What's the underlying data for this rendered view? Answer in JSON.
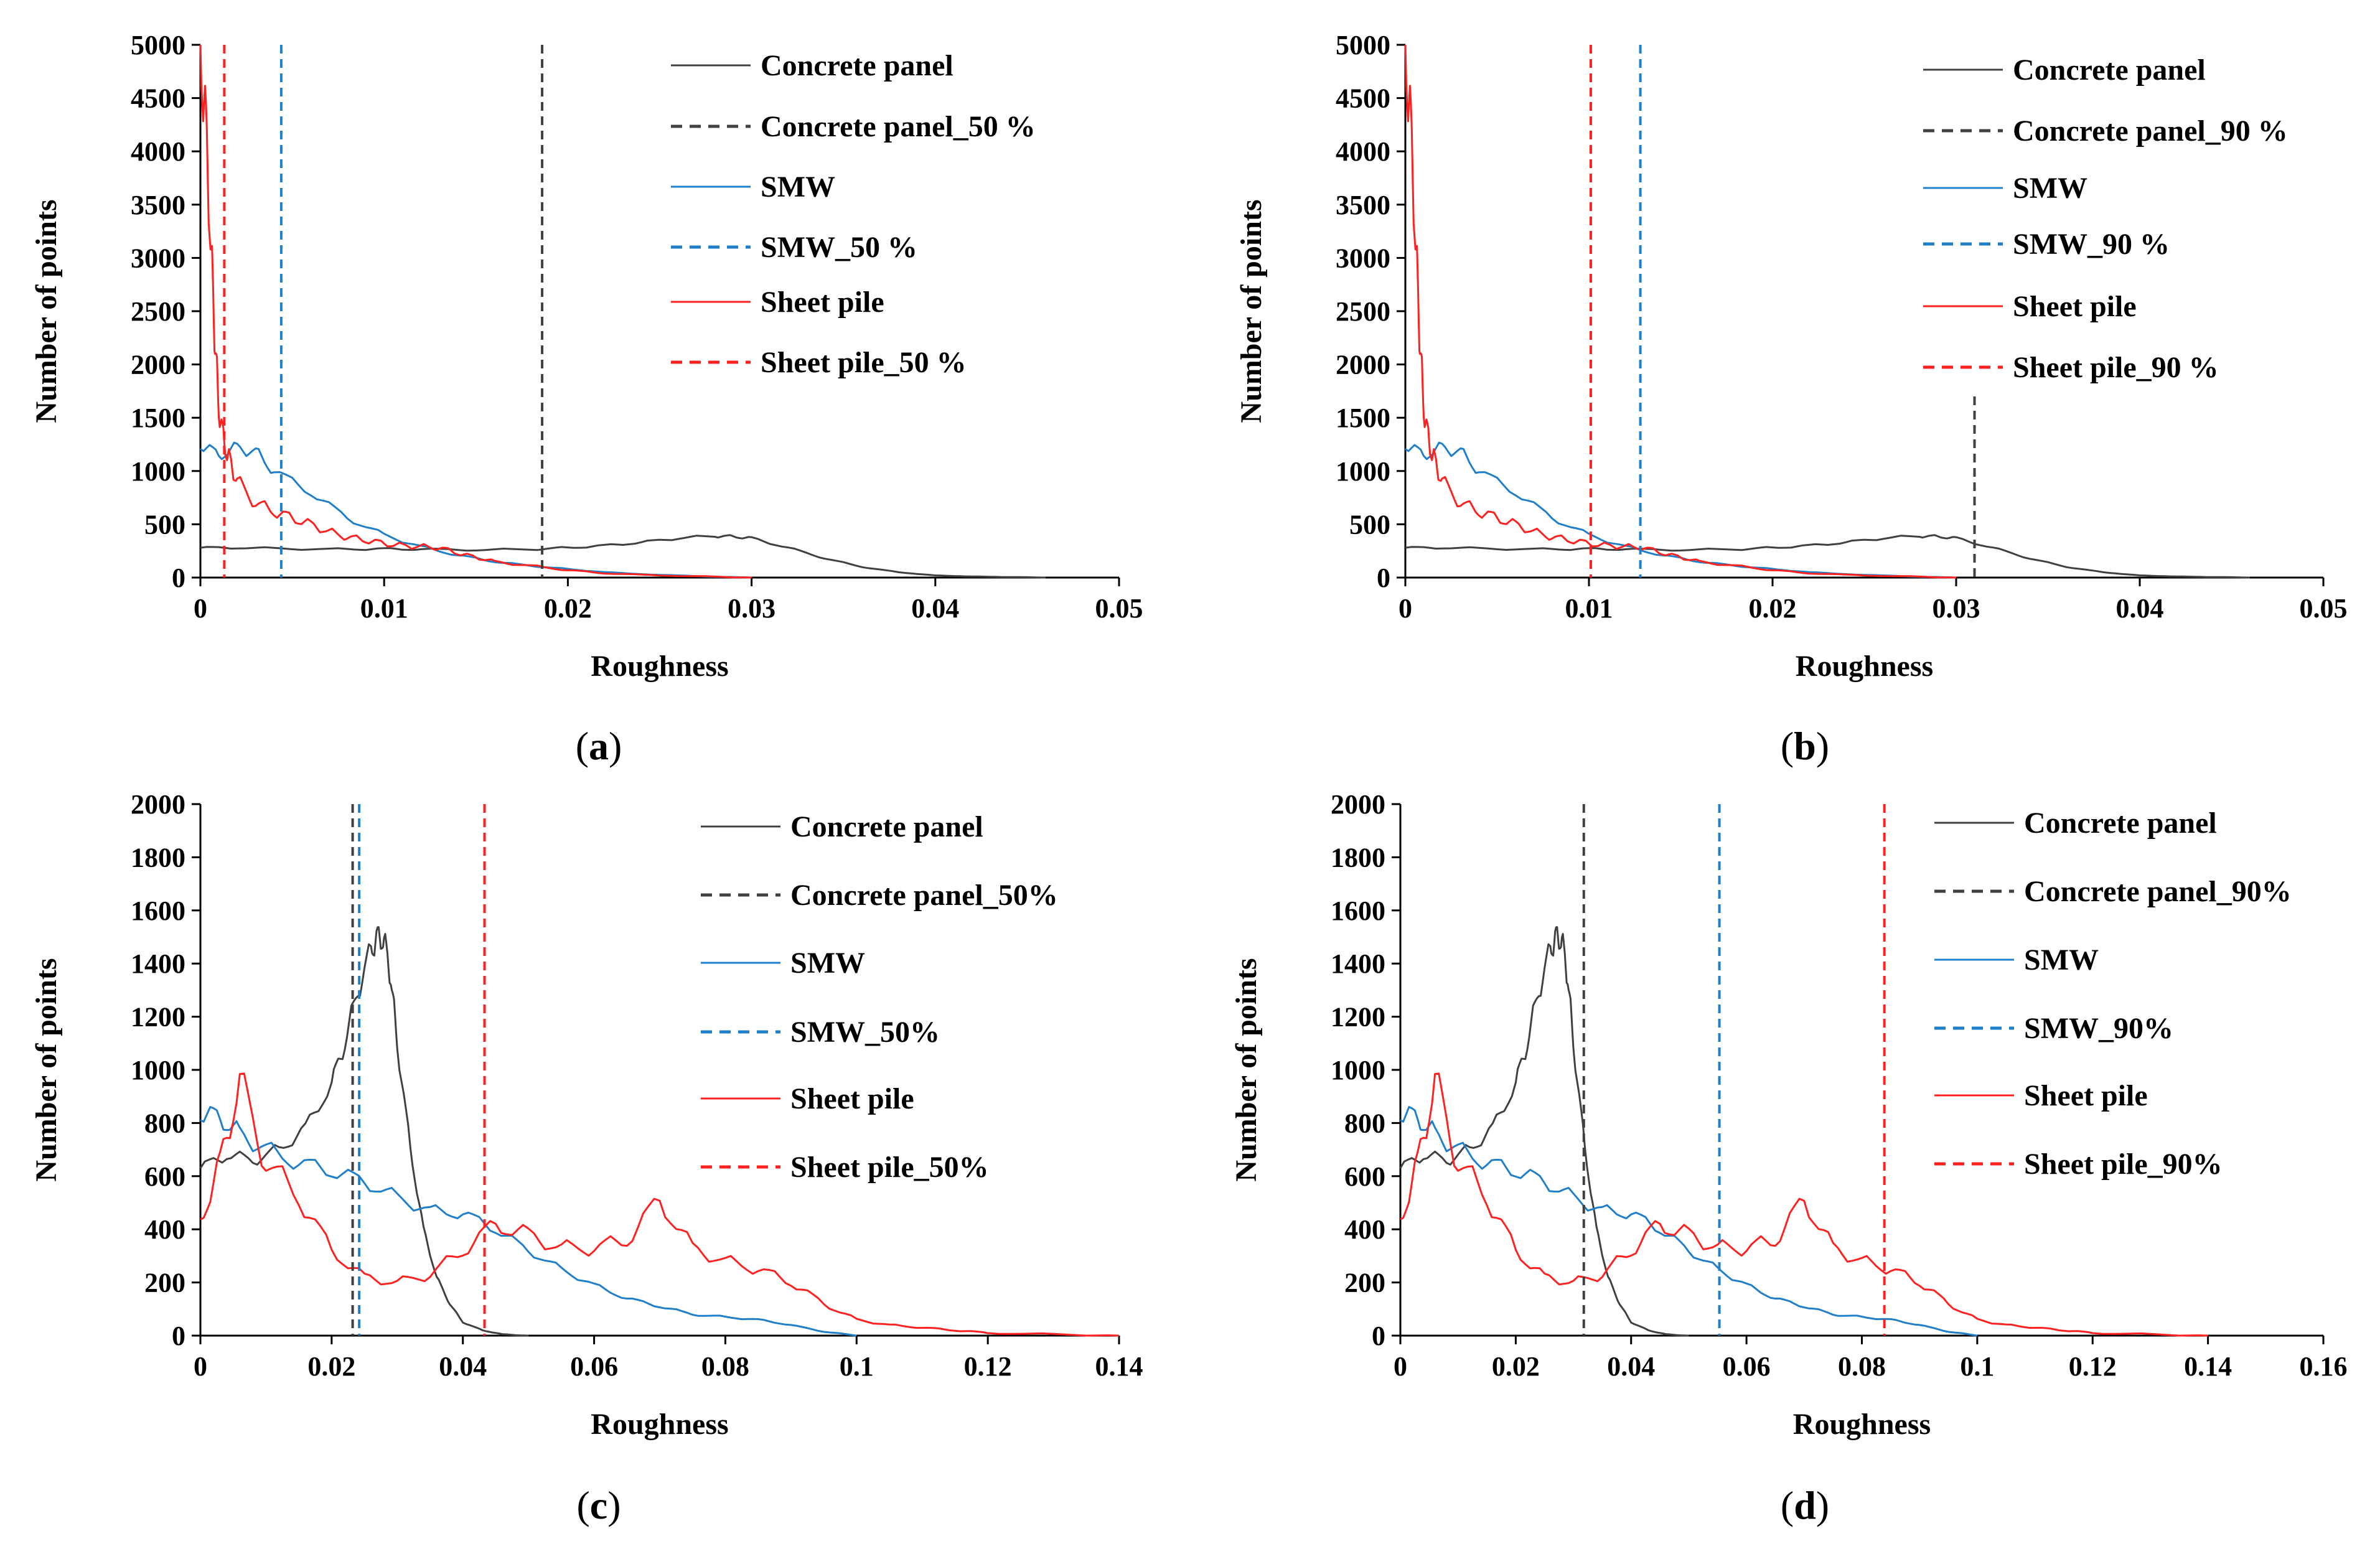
{
  "colors": {
    "concrete": "#404040",
    "smw": "#1f7fc8",
    "sheet": "#ff2020",
    "axis": "#000000"
  },
  "chart_data": [
    {
      "type": "line",
      "panel_label": "a",
      "xlabel": "Roughness",
      "ylabel": "Number of points",
      "xlim": [
        0,
        0.05
      ],
      "ylim": [
        0,
        5000
      ],
      "xticks": [
        "0",
        "0.01",
        "0.02",
        "0.03",
        "0.04",
        "0.05"
      ],
      "xtick_values": [
        0,
        0.01,
        0.02,
        0.03,
        0.04,
        0.05
      ],
      "yticks": [
        "0",
        "500",
        "1000",
        "1500",
        "2000",
        "2500",
        "3000",
        "3500",
        "4000",
        "4500",
        "5000"
      ],
      "ytick_values": [
        0,
        500,
        1000,
        1500,
        2000,
        2500,
        3000,
        3500,
        4000,
        4500,
        5000
      ],
      "legend": [
        "Concrete panel",
        "Concrete panel_50 %",
        "SMW",
        "SMW_50 %",
        "Sheet pile",
        "Sheet pile_50 %"
      ],
      "series": [
        {
          "name": "Concrete panel",
          "key": "concrete",
          "x": [
            0,
            0.002,
            0.005,
            0.008,
            0.01,
            0.012,
            0.015,
            0.018,
            0.02,
            0.022,
            0.024,
            0.026,
            0.028,
            0.029,
            0.03,
            0.032,
            0.034,
            0.036,
            0.038,
            0.04,
            0.042,
            0.044,
            0.046
          ],
          "y": [
            280,
            280,
            270,
            265,
            270,
            265,
            260,
            265,
            280,
            300,
            330,
            370,
            390,
            385,
            370,
            280,
            180,
            100,
            50,
            20,
            10,
            5,
            0
          ]
        },
        {
          "name": "SMW",
          "key": "smw",
          "x": [
            0,
            0.001,
            0.002,
            0.003,
            0.004,
            0.006,
            0.008,
            0.01,
            0.012,
            0.014,
            0.016,
            0.018,
            0.02,
            0.022,
            0.025,
            0.028,
            0.03
          ],
          "y": [
            1250,
            1150,
            1220,
            1180,
            1000,
            800,
            560,
            400,
            290,
            210,
            150,
            110,
            80,
            50,
            25,
            8,
            0
          ]
        },
        {
          "name": "Sheet pile",
          "key": "sheet",
          "x": [
            0,
            0.0003,
            0.0006,
            0.0008,
            0.001,
            0.0013,
            0.0016,
            0.002,
            0.003,
            0.004,
            0.005,
            0.006,
            0.007,
            0.008,
            0.009,
            0.01,
            0.011,
            0.012,
            0.013,
            0.014,
            0.015,
            0.016,
            0.018,
            0.02,
            0.022,
            0.025,
            0.028,
            0.03
          ],
          "y": [
            5000,
            4200,
            3000,
            2200,
            1600,
            1250,
            1100,
            900,
            700,
            620,
            560,
            500,
            430,
            380,
            350,
            320,
            300,
            290,
            280,
            230,
            190,
            150,
            110,
            70,
            40,
            20,
            8,
            0
          ]
        }
      ],
      "vlines": [
        {
          "name": "Concrete panel_50 %",
          "key": "concrete",
          "x": 0.0186,
          "ymax": 5000
        },
        {
          "name": "SMW_50 %",
          "key": "smw",
          "x": 0.0044,
          "ymax": 5000
        },
        {
          "name": "Sheet pile_50 %",
          "key": "sheet",
          "x": 0.0013,
          "ymax": 5000
        }
      ]
    },
    {
      "type": "line",
      "panel_label": "b",
      "xlabel": "Roughness",
      "ylabel": "Number of points",
      "xlim": [
        0,
        0.05
      ],
      "ylim": [
        0,
        5000
      ],
      "xticks": [
        "0",
        "0.01",
        "0.02",
        "0.03",
        "0.04",
        "0.05"
      ],
      "xtick_values": [
        0,
        0.01,
        0.02,
        0.03,
        0.04,
        0.05
      ],
      "yticks": [
        "0",
        "500",
        "1000",
        "1500",
        "2000",
        "2500",
        "3000",
        "3500",
        "4000",
        "4500",
        "5000"
      ],
      "ytick_values": [
        0,
        500,
        1000,
        1500,
        2000,
        2500,
        3000,
        3500,
        4000,
        4500,
        5000
      ],
      "legend": [
        "Concrete panel",
        "Concrete panel_90 %",
        "SMW",
        "SMW_90 %",
        "Sheet pile",
        "Sheet pile_90 %"
      ],
      "series": [
        {
          "name": "Concrete panel",
          "key": "concrete",
          "x": [
            0,
            0.002,
            0.005,
            0.008,
            0.01,
            0.012,
            0.015,
            0.018,
            0.02,
            0.022,
            0.024,
            0.026,
            0.028,
            0.029,
            0.03,
            0.032,
            0.034,
            0.036,
            0.038,
            0.04,
            0.042,
            0.044,
            0.046
          ],
          "y": [
            280,
            280,
            270,
            265,
            270,
            265,
            260,
            265,
            280,
            300,
            330,
            370,
            390,
            385,
            370,
            280,
            180,
            100,
            50,
            20,
            10,
            5,
            0
          ]
        },
        {
          "name": "SMW",
          "key": "smw",
          "x": [
            0,
            0.001,
            0.002,
            0.003,
            0.004,
            0.006,
            0.008,
            0.01,
            0.012,
            0.014,
            0.016,
            0.018,
            0.02,
            0.022,
            0.025,
            0.028,
            0.03
          ],
          "y": [
            1250,
            1150,
            1220,
            1180,
            1000,
            800,
            560,
            400,
            290,
            210,
            150,
            110,
            80,
            50,
            25,
            8,
            0
          ]
        },
        {
          "name": "Sheet pile",
          "key": "sheet",
          "x": [
            0,
            0.0003,
            0.0006,
            0.0008,
            0.001,
            0.0013,
            0.0016,
            0.002,
            0.003,
            0.004,
            0.005,
            0.006,
            0.007,
            0.008,
            0.009,
            0.01,
            0.011,
            0.012,
            0.013,
            0.014,
            0.015,
            0.016,
            0.018,
            0.02,
            0.022,
            0.025,
            0.028,
            0.03
          ],
          "y": [
            5000,
            4200,
            3000,
            2200,
            1600,
            1250,
            1100,
            900,
            700,
            620,
            560,
            500,
            430,
            380,
            350,
            320,
            300,
            290,
            280,
            230,
            190,
            150,
            110,
            70,
            40,
            20,
            8,
            0
          ]
        }
      ],
      "vlines": [
        {
          "name": "Concrete panel_90 %",
          "key": "concrete",
          "x": 0.031,
          "ymax": 1700
        },
        {
          "name": "SMW_90 %",
          "key": "smw",
          "x": 0.0128,
          "ymax": 5000
        },
        {
          "name": "Sheet pile_90 %",
          "key": "sheet",
          "x": 0.0101,
          "ymax": 5000
        }
      ]
    },
    {
      "type": "line",
      "panel_label": "c",
      "xlabel": "Roughness",
      "ylabel": "Number of points",
      "xlim": [
        0,
        0.14
      ],
      "ylim": [
        0,
        2000
      ],
      "xticks": [
        "0",
        "0.02",
        "0.04",
        "0.06",
        "0.08",
        "0.1",
        "0.12",
        "0.14"
      ],
      "xtick_values": [
        0,
        0.02,
        0.04,
        0.06,
        0.08,
        0.1,
        0.12,
        0.14
      ],
      "yticks": [
        "0",
        "200",
        "400",
        "600",
        "800",
        "1000",
        "1200",
        "1400",
        "1600",
        "1800",
        "2000"
      ],
      "ytick_values": [
        0,
        200,
        400,
        600,
        800,
        1000,
        1200,
        1400,
        1600,
        1800,
        2000
      ],
      "legend": [
        "Concrete panel",
        "Concrete panel_50%",
        "SMW",
        "SMW_50%",
        "Sheet pile",
        "Sheet pile_50%"
      ],
      "series": [
        {
          "name": "Concrete panel",
          "key": "concrete",
          "x": [
            0,
            0.004,
            0.008,
            0.012,
            0.016,
            0.02,
            0.022,
            0.024,
            0.026,
            0.027,
            0.028,
            0.029,
            0.03,
            0.032,
            0.034,
            0.036,
            0.038,
            0.04,
            0.043,
            0.046,
            0.05
          ],
          "y": [
            630,
            680,
            660,
            700,
            780,
            950,
            1100,
            1300,
            1450,
            1500,
            1490,
            1350,
            1100,
            700,
            400,
            220,
            120,
            50,
            20,
            5,
            0
          ]
        },
        {
          "name": "SMW",
          "key": "smw",
          "x": [
            0,
            0.003,
            0.006,
            0.01,
            0.015,
            0.02,
            0.025,
            0.03,
            0.035,
            0.04,
            0.045,
            0.05,
            0.055,
            0.06,
            0.065,
            0.07,
            0.075,
            0.08,
            0.085,
            0.09,
            0.095,
            0.1
          ],
          "y": [
            840,
            820,
            760,
            700,
            650,
            620,
            580,
            520,
            470,
            460,
            400,
            320,
            250,
            190,
            140,
            110,
            80,
            70,
            60,
            40,
            15,
            0
          ]
        },
        {
          "name": "Sheet pile",
          "key": "sheet",
          "x": [
            0,
            0.003,
            0.006,
            0.01,
            0.015,
            0.02,
            0.025,
            0.03,
            0.035,
            0.04,
            0.045,
            0.05,
            0.055,
            0.06,
            0.065,
            0.07,
            0.075,
            0.08,
            0.085,
            0.09,
            0.095,
            0.1,
            0.105,
            0.11,
            0.115,
            0.12,
            0.13,
            0.14
          ],
          "y": [
            430,
            650,
            960,
            650,
            520,
            320,
            220,
            200,
            230,
            320,
            420,
            380,
            330,
            330,
            360,
            510,
            330,
            280,
            250,
            200,
            120,
            60,
            40,
            30,
            20,
            10,
            5,
            0
          ]
        }
      ],
      "vlines": [
        {
          "name": "Concrete panel_50%",
          "key": "concrete",
          "x": 0.0232,
          "ymax": 2000
        },
        {
          "name": "SMW_50%",
          "key": "smw",
          "x": 0.0242,
          "ymax": 2000
        },
        {
          "name": "Sheet pile_50%",
          "key": "sheet",
          "x": 0.0433,
          "ymax": 2000
        }
      ]
    },
    {
      "type": "line",
      "panel_label": "d",
      "xlabel": "Roughness",
      "ylabel": "Number of points",
      "xlim": [
        0,
        0.16
      ],
      "ylim": [
        0,
        2000
      ],
      "xticks": [
        "0",
        "0.02",
        "0.04",
        "0.06",
        "0.08",
        "0.1",
        "0.12",
        "0.14",
        "0.16"
      ],
      "xtick_values": [
        0,
        0.02,
        0.04,
        0.06,
        0.08,
        0.1,
        0.12,
        0.14,
        0.16
      ],
      "yticks": [
        "0",
        "200",
        "400",
        "600",
        "800",
        "1000",
        "1200",
        "1400",
        "1600",
        "1800",
        "2000"
      ],
      "ytick_values": [
        0,
        200,
        400,
        600,
        800,
        1000,
        1200,
        1400,
        1600,
        1800,
        2000
      ],
      "legend": [
        "Concrete panel",
        "Concrete panel_90%",
        "SMW",
        "SMW_90%",
        "Sheet pile",
        "Sheet pile_90%"
      ],
      "series": [
        {
          "name": "Concrete panel",
          "key": "concrete",
          "x": [
            0,
            0.004,
            0.008,
            0.012,
            0.016,
            0.02,
            0.022,
            0.024,
            0.026,
            0.027,
            0.028,
            0.029,
            0.03,
            0.032,
            0.034,
            0.036,
            0.038,
            0.04,
            0.043,
            0.046,
            0.05
          ],
          "y": [
            630,
            680,
            660,
            700,
            780,
            950,
            1100,
            1300,
            1450,
            1500,
            1490,
            1350,
            1100,
            700,
            400,
            220,
            120,
            50,
            20,
            5,
            0
          ]
        },
        {
          "name": "SMW",
          "key": "smw",
          "x": [
            0,
            0.003,
            0.006,
            0.01,
            0.015,
            0.02,
            0.025,
            0.03,
            0.035,
            0.04,
            0.045,
            0.05,
            0.055,
            0.06,
            0.065,
            0.07,
            0.075,
            0.08,
            0.085,
            0.09,
            0.095,
            0.1
          ],
          "y": [
            840,
            820,
            760,
            700,
            650,
            620,
            580,
            520,
            470,
            460,
            400,
            320,
            250,
            190,
            140,
            110,
            80,
            70,
            60,
            40,
            15,
            0
          ]
        },
        {
          "name": "Sheet pile",
          "key": "sheet",
          "x": [
            0,
            0.003,
            0.006,
            0.01,
            0.015,
            0.02,
            0.025,
            0.03,
            0.035,
            0.04,
            0.045,
            0.05,
            0.055,
            0.06,
            0.065,
            0.07,
            0.075,
            0.08,
            0.085,
            0.09,
            0.095,
            0.1,
            0.105,
            0.11,
            0.115,
            0.12,
            0.13,
            0.14
          ],
          "y": [
            430,
            650,
            960,
            650,
            520,
            320,
            220,
            200,
            230,
            320,
            420,
            380,
            330,
            330,
            360,
            510,
            330,
            280,
            250,
            200,
            120,
            60,
            40,
            30,
            20,
            10,
            5,
            0
          ]
        }
      ],
      "vlines": [
        {
          "name": "Concrete panel_90%",
          "key": "concrete",
          "x": 0.0318,
          "ymax": 2000
        },
        {
          "name": "SMW_90%",
          "key": "smw",
          "x": 0.0553,
          "ymax": 2000
        },
        {
          "name": "Sheet pile_90%",
          "key": "sheet",
          "x": 0.0839,
          "ymax": 2000
        }
      ]
    }
  ]
}
